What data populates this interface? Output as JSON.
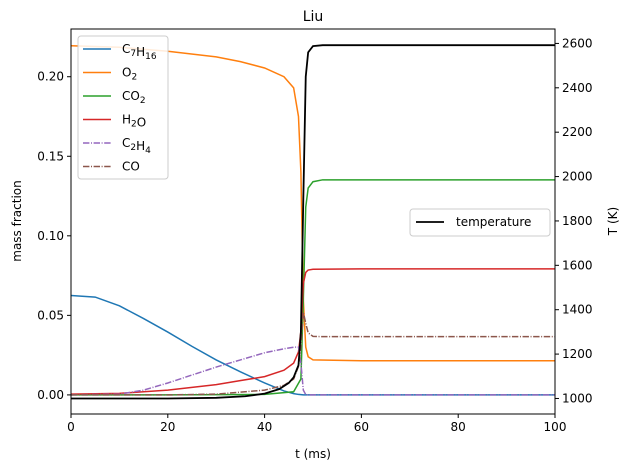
{
  "chart_data": {
    "type": "line",
    "title": "Liu",
    "xlabel": "t (ms)",
    "ylabel_left": "mass fraction",
    "ylabel_right": "T (K)",
    "xlim": [
      0,
      100
    ],
    "ylim_left": [
      -0.012,
      0.23
    ],
    "ylim_right": [
      930,
      2665
    ],
    "x_ticks": [
      0,
      20,
      40,
      60,
      80,
      100
    ],
    "y_ticks_left": [
      "0.00",
      "0.05",
      "0.10",
      "0.15",
      "0.20"
    ],
    "y_ticks_right": [
      1000,
      1200,
      1400,
      1600,
      1800,
      2000,
      2200,
      2400,
      2600
    ],
    "grid": false,
    "legend_left_position": "upper-left",
    "legend_right_position": "center-right",
    "series_left": [
      {
        "name": "C7H16",
        "color": "#1f77b4",
        "style": "solid",
        "x": [
          0,
          5,
          10,
          15,
          20,
          25,
          30,
          35,
          40,
          44,
          46,
          47,
          48,
          50,
          60,
          80,
          100
        ],
        "y": [
          0.0625,
          0.0615,
          0.056,
          0.048,
          0.0395,
          0.0305,
          0.022,
          0.0145,
          0.0075,
          0.0025,
          0.0008,
          0.0003,
          0.0,
          0.0,
          0.0,
          0.0,
          0.0
        ]
      },
      {
        "name": "O2",
        "color": "#ff7f0e",
        "style": "solid",
        "x": [
          0,
          10,
          20,
          30,
          35,
          40,
          44,
          46,
          47,
          47.5,
          48,
          48.5,
          49,
          50,
          60,
          80,
          100
        ],
        "y": [
          0.2195,
          0.2185,
          0.216,
          0.2125,
          0.2095,
          0.2055,
          0.2,
          0.193,
          0.175,
          0.14,
          0.06,
          0.03,
          0.024,
          0.022,
          0.0215,
          0.0215,
          0.0215
        ]
      },
      {
        "name": "CO2",
        "color": "#2ca02c",
        "style": "solid",
        "x": [
          0,
          20,
          40,
          46,
          47.5,
          48,
          48.5,
          49,
          50,
          52,
          60,
          80,
          100
        ],
        "y": [
          0.0,
          0.0,
          0.0003,
          0.002,
          0.01,
          0.06,
          0.118,
          0.13,
          0.134,
          0.1352,
          0.1352,
          0.1352,
          0.1352
        ]
      },
      {
        "name": "H2O",
        "color": "#d62728",
        "style": "solid",
        "x": [
          0,
          10,
          20,
          30,
          40,
          44,
          46,
          47,
          47.5,
          48,
          48.5,
          49,
          50,
          60,
          80,
          100
        ],
        "y": [
          0.0005,
          0.001,
          0.003,
          0.0065,
          0.0115,
          0.0155,
          0.02,
          0.027,
          0.04,
          0.07,
          0.077,
          0.0785,
          0.079,
          0.0792,
          0.0792,
          0.0792
        ]
      },
      {
        "name": "C2H4",
        "color": "#9467bd",
        "style": "dashdot",
        "x": [
          0,
          10,
          15,
          20,
          25,
          30,
          35,
          40,
          44,
          46,
          47,
          47.5,
          48,
          48.5,
          49,
          50,
          60,
          80,
          100
        ],
        "y": [
          0.0,
          0.0005,
          0.003,
          0.0075,
          0.0125,
          0.0175,
          0.022,
          0.0265,
          0.029,
          0.03,
          0.03,
          0.02,
          0.003,
          0.0002,
          0.0,
          0.0,
          0.0,
          0.0,
          0.0
        ]
      },
      {
        "name": "CO",
        "color": "#8c564b",
        "style": "dashdot",
        "x": [
          0,
          20,
          30,
          40,
          44,
          46,
          47,
          47.5,
          48,
          48.5,
          49,
          50,
          52,
          60,
          80,
          100
        ],
        "y": [
          0.0,
          0.0,
          0.0005,
          0.003,
          0.006,
          0.01,
          0.018,
          0.03,
          0.052,
          0.045,
          0.039,
          0.0368,
          0.0366,
          0.0366,
          0.0366,
          0.0366
        ]
      }
    ],
    "series_right": [
      {
        "name": "temperature",
        "color": "#000000",
        "style": "solid",
        "x": [
          0,
          20,
          30,
          36,
          40,
          43,
          45,
          46,
          47,
          47.5,
          48,
          48.5,
          49,
          50,
          52,
          60,
          80,
          100
        ],
        "y": [
          1000,
          1000,
          1003,
          1010,
          1022,
          1042,
          1070,
          1095,
          1150,
          1300,
          1900,
          2450,
          2560,
          2588,
          2592,
          2592,
          2592,
          2592
        ]
      }
    ]
  }
}
